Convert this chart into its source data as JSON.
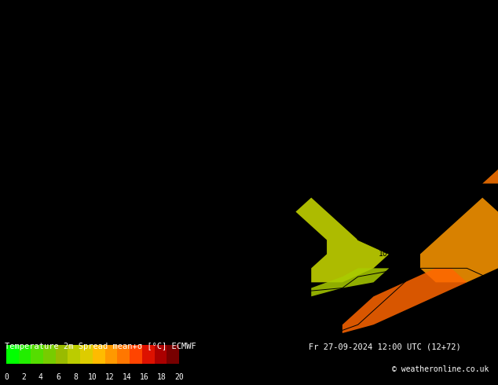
{
  "title_left": "Temperature 2m Spread mean+σ [°C] ECMWF",
  "title_right": "Fr 27-09-2024 12:00 UTC (12+72)",
  "copyright": "© weatheronline.co.uk",
  "colorbar_values": [
    0,
    2,
    4,
    6,
    8,
    10,
    12,
    14,
    16,
    18,
    20
  ],
  "colorbar_colors": [
    "#00FF00",
    "#22EE00",
    "#44DD00",
    "#66CC00",
    "#88BB00",
    "#AAAA00",
    "#CCBB00",
    "#FFCC00",
    "#FF9900",
    "#FF6600",
    "#FF3300",
    "#CC0000",
    "#990000",
    "#660000"
  ],
  "map_bg_color": "#00FF00",
  "contour_color": "#000000",
  "label_color": "#000000",
  "fig_width": 6.34,
  "fig_height": 4.9,
  "dpi": 100
}
